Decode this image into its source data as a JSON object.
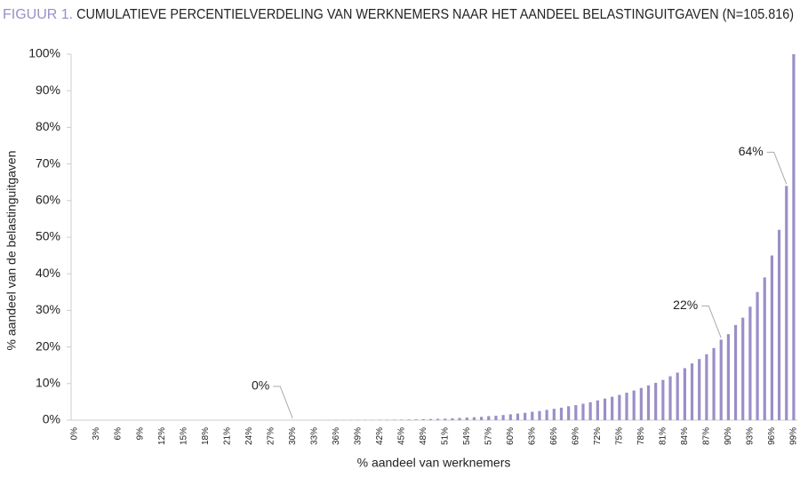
{
  "chart_data": {
    "type": "bar",
    "figure_label": "FIGUUR 1.",
    "title": "CUMULATIEVE PERCENTIELVERDELING VAN WERKNEMERS NAAR HET AANDEEL BELASTINGUITGAVEN (N=105.816)",
    "x_label": "% aandeel van werknemers",
    "y_label": "% aandeel van de belastinguitgaven",
    "color": "#9b8fc7",
    "ylim": [
      0,
      100
    ],
    "yticks": [
      {
        "value": 0,
        "label": "0%"
      },
      {
        "value": 10,
        "label": "10%"
      },
      {
        "value": 20,
        "label": "20%"
      },
      {
        "value": 30,
        "label": "30%"
      },
      {
        "value": 40,
        "label": "40%"
      },
      {
        "value": 50,
        "label": "50%"
      },
      {
        "value": 60,
        "label": "60%"
      },
      {
        "value": 70,
        "label": "70%"
      },
      {
        "value": 80,
        "label": "80%"
      },
      {
        "value": 90,
        "label": "90%"
      },
      {
        "value": 100,
        "label": "100%"
      }
    ],
    "categories": [
      "0%",
      null,
      null,
      "3%",
      null,
      null,
      "6%",
      null,
      null,
      "9%",
      null,
      null,
      "12%",
      null,
      null,
      "15%",
      null,
      null,
      "18%",
      null,
      null,
      "21%",
      null,
      null,
      "24%",
      null,
      null,
      "27%",
      null,
      null,
      "30%",
      null,
      null,
      "33%",
      null,
      null,
      "36%",
      null,
      null,
      "39%",
      null,
      null,
      "42%",
      null,
      null,
      "45%",
      null,
      null,
      "48%",
      null,
      null,
      "51%",
      null,
      null,
      "54%",
      null,
      null,
      "57%",
      null,
      null,
      "60%",
      null,
      null,
      "63%",
      null,
      null,
      "66%",
      null,
      null,
      "69%",
      null,
      null,
      "72%",
      null,
      null,
      "75%",
      null,
      null,
      "78%",
      null,
      null,
      "81%",
      null,
      null,
      "84%",
      null,
      null,
      "87%",
      null,
      null,
      "90%",
      null,
      null,
      "93%",
      null,
      null,
      "96%",
      null,
      null,
      "99%"
    ],
    "values": [
      0,
      0,
      0,
      0,
      0,
      0,
      0,
      0,
      0,
      0,
      0,
      0,
      0,
      0,
      0,
      0,
      0,
      0,
      0,
      0,
      0,
      0,
      0,
      0,
      0,
      0,
      0,
      0,
      0,
      0,
      0.01,
      0.01,
      0.01,
      0.02,
      0.02,
      0.03,
      0.03,
      0.04,
      0.05,
      0.06,
      0.07,
      0.08,
      0.1,
      0.11,
      0.13,
      0.15,
      0.18,
      0.2,
      0.25,
      0.3,
      0.35,
      0.4,
      0.5,
      0.6,
      0.7,
      0.8,
      0.9,
      1.1,
      1.2,
      1.4,
      1.6,
      1.8,
      2.0,
      2.3,
      2.5,
      2.8,
      3.1,
      3.4,
      3.8,
      4.1,
      4.5,
      4.9,
      5.4,
      5.9,
      6.4,
      6.9,
      7.5,
      8.1,
      8.8,
      9.5,
      10.2,
      11,
      12,
      13,
      14.2,
      15.5,
      16.7,
      18,
      19.7,
      22,
      23.5,
      26,
      28,
      31,
      35,
      39,
      45,
      52,
      64,
      100
    ],
    "value_labels": [
      null,
      null,
      null,
      null,
      null,
      null,
      null,
      null,
      null,
      null,
      null,
      null,
      null,
      null,
      null,
      null,
      null,
      null,
      null,
      null,
      null,
      null,
      null,
      null,
      null,
      null,
      null,
      null,
      null,
      null,
      "0%",
      null,
      null,
      null,
      null,
      null,
      null,
      null,
      null,
      null,
      null,
      null,
      null,
      null,
      null,
      null,
      null,
      null,
      null,
      null,
      null,
      null,
      null,
      null,
      null,
      null,
      null,
      null,
      null,
      null,
      null,
      null,
      null,
      null,
      null,
      null,
      null,
      null,
      null,
      null,
      null,
      null,
      null,
      null,
      null,
      null,
      null,
      null,
      null,
      null,
      null,
      null,
      null,
      null,
      null,
      null,
      null,
      null,
      null,
      "22%",
      null,
      null,
      null,
      null,
      null,
      null,
      null,
      null,
      "64%",
      null
    ]
  }
}
